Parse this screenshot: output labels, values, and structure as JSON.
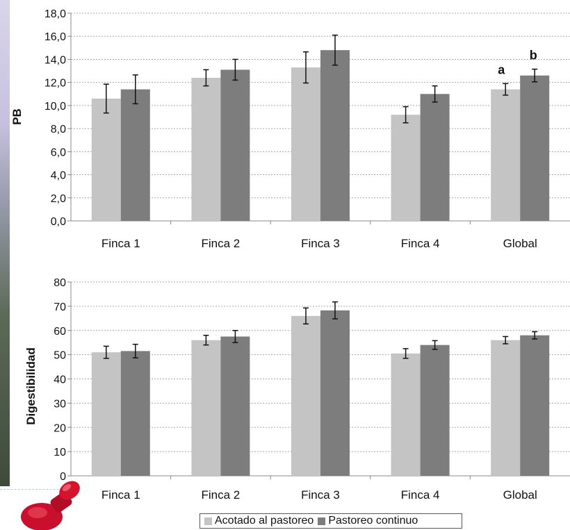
{
  "colors": {
    "series_light": "#c4c4c4",
    "series_dark": "#7d7d7d",
    "grid": "#a8a8a8",
    "axis": "#888888"
  },
  "legend": {
    "items": [
      {
        "label": "Acotado al pastoreo",
        "color": "#c4c4c4"
      },
      {
        "label": "Pastoreo continuo",
        "color": "#7d7d7d"
      }
    ]
  },
  "chart_data": [
    {
      "type": "bar",
      "ylabel": "PB",
      "ylim": [
        0,
        18
      ],
      "yticks": [
        "0,0",
        "2,0",
        "4,0",
        "6,0",
        "8,0",
        "10,0",
        "12,0",
        "14,0",
        "16,0",
        "18,0"
      ],
      "categories": [
        "Finca 1",
        "Finca 2",
        "Finca 3",
        "Finca 4",
        "Global"
      ],
      "grid": true,
      "series": [
        {
          "name": "Acotado al pastoreo",
          "values": [
            10.6,
            12.4,
            13.3,
            9.2,
            11.4
          ],
          "errors": [
            1.25,
            0.7,
            1.35,
            0.7,
            0.5
          ]
        },
        {
          "name": "Pastoreo continuo",
          "values": [
            11.4,
            13.1,
            14.8,
            11.0,
            12.6
          ],
          "errors": [
            1.25,
            0.9,
            1.3,
            0.7,
            0.55
          ]
        }
      ],
      "annotations": [
        {
          "text": "a",
          "category": "Global",
          "series": 0
        },
        {
          "text": "b",
          "category": "Global",
          "series": 1
        }
      ]
    },
    {
      "type": "bar",
      "ylabel": "Digestibilidad",
      "ylim": [
        0,
        80
      ],
      "yticks": [
        "0",
        "10",
        "20",
        "30",
        "40",
        "50",
        "60",
        "70",
        "80"
      ],
      "categories": [
        "Finca 1",
        "Finca 2",
        "Finca 3",
        "Finca 4",
        "Global"
      ],
      "grid": true,
      "series": [
        {
          "name": "Acotado al pastoreo",
          "values": [
            51,
            56,
            66,
            50.5,
            56
          ],
          "errors": [
            2.5,
            2,
            3.3,
            2,
            1.5
          ]
        },
        {
          "name": "Pastoreo continuo",
          "values": [
            51.5,
            57.5,
            68.3,
            54,
            58
          ],
          "errors": [
            2.8,
            2.5,
            3.5,
            1.8,
            1.5
          ]
        }
      ]
    }
  ]
}
